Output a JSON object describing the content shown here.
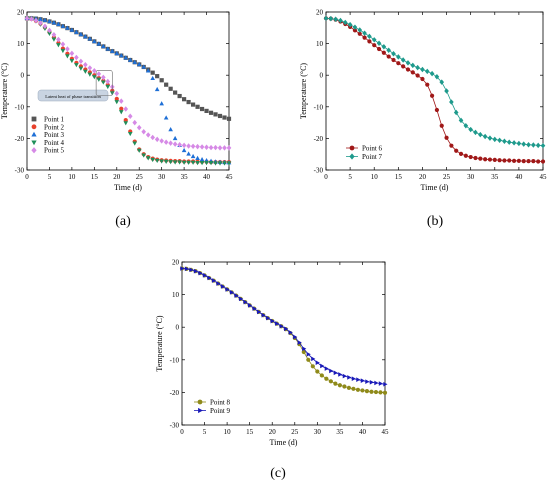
{
  "charts": [
    {
      "id": "a",
      "caption": "(a)",
      "chart_data": {
        "type": "scatter",
        "title": "",
        "xlabel": "Time (d)",
        "ylabel": "Temperature (°C)",
        "xlim": [
          0,
          45
        ],
        "ylim": [
          -30,
          20
        ],
        "xticks": [
          0,
          5,
          10,
          15,
          20,
          25,
          30,
          35,
          40,
          45
        ],
        "yticks": [
          -30,
          -20,
          -10,
          0,
          10,
          20
        ],
        "grid": false,
        "legend_position": "bottom-left",
        "annotation": "Latent heat of phase transition",
        "series": [
          {
            "name": "Point 1",
            "color": "#555555",
            "marker": "square",
            "x": [
              0,
              1,
              2,
              3,
              4,
              5,
              6,
              7,
              8,
              9,
              10,
              11,
              12,
              13,
              14,
              15,
              16,
              17,
              18,
              19,
              20,
              21,
              22,
              23,
              24,
              25,
              26,
              27,
              28,
              29,
              30,
              31,
              32,
              33,
              34,
              35,
              36,
              37,
              38,
              39,
              40,
              41,
              42,
              43,
              44,
              45
            ],
            "y": [
              18,
              18,
              17.9,
              17.7,
              17.4,
              17,
              16.6,
              16.1,
              15.5,
              14.9,
              14.3,
              13.6,
              12.9,
              12.2,
              11.5,
              10.7,
              9.9,
              9.1,
              8.3,
              7.6,
              6.9,
              6.2,
              5.5,
              4.8,
              4.1,
              3.4,
              2.6,
              1.8,
              0.8,
              -0.3,
              -1.6,
              -3,
              -4.3,
              -5.5,
              -6.6,
              -7.6,
              -8.5,
              -9.3,
              -10,
              -10.7,
              -11.3,
              -11.9,
              -12.4,
              -12.9,
              -13.4,
              -13.8
            ]
          },
          {
            "name": "Point 2",
            "color": "#e8412c",
            "marker": "circle",
            "x": [
              0,
              1,
              2,
              3,
              4,
              5,
              6,
              7,
              8,
              9,
              10,
              11,
              12,
              13,
              14,
              15,
              16,
              17,
              18,
              19,
              20,
              21,
              22,
              23,
              24,
              25,
              26,
              27,
              28,
              29,
              30,
              31,
              32,
              33,
              34,
              35,
              36,
              37,
              38,
              39,
              40,
              41,
              42,
              43,
              44,
              45
            ],
            "y": [
              18,
              17.8,
              17.2,
              16.3,
              15.1,
              13.6,
              11.9,
              10.2,
              8.4,
              6.8,
              5.2,
              3.9,
              2.8,
              1.8,
              0.9,
              0,
              -0.9,
              -1.8,
              -3.1,
              -4.9,
              -7.5,
              -10.6,
              -14.2,
              -17.8,
              -21,
              -23.5,
              -25,
              -25.9,
              -26.4,
              -26.7,
              -26.9,
              -27,
              -27.1,
              -27.2,
              -27.2,
              -27.3,
              -27.3,
              -27.3,
              -27.4,
              -27.4,
              -27.4,
              -27.5,
              -27.5,
              -27.5,
              -27.5,
              -27.5
            ]
          },
          {
            "name": "Point 3",
            "color": "#1e6fd6",
            "marker": "triangle-up",
            "x": [
              0,
              1,
              2,
              3,
              4,
              5,
              6,
              7,
              8,
              9,
              10,
              11,
              12,
              13,
              14,
              15,
              16,
              17,
              18,
              19,
              20,
              21,
              22,
              23,
              24,
              25,
              26,
              27,
              28,
              29,
              30,
              31,
              32,
              33,
              34,
              35,
              36,
              37,
              38,
              39,
              40,
              41,
              42,
              43,
              44,
              45
            ],
            "y": [
              18,
              18,
              17.9,
              17.7,
              17.4,
              17,
              16.6,
              16.1,
              15.5,
              14.9,
              14.3,
              13.6,
              12.9,
              12.2,
              11.5,
              10.7,
              9.9,
              9.1,
              8.3,
              7.6,
              6.9,
              6.2,
              5.5,
              4.8,
              4.1,
              3.4,
              2.6,
              1.4,
              -1,
              -4.5,
              -9,
              -13.5,
              -17.2,
              -20,
              -22.2,
              -23.8,
              -24.9,
              -25.7,
              -26.3,
              -26.7,
              -27,
              -27.2,
              -27.4,
              -27.5,
              -27.6,
              -27.7
            ]
          },
          {
            "name": "Point 4",
            "color": "#1f8f5a",
            "marker": "triangle-down",
            "x": [
              0,
              1,
              2,
              3,
              4,
              5,
              6,
              7,
              8,
              9,
              10,
              11,
              12,
              13,
              14,
              15,
              16,
              17,
              18,
              19,
              20,
              21,
              22,
              23,
              24,
              25,
              26,
              27,
              28,
              29,
              30,
              31,
              32,
              33,
              34,
              35,
              36,
              37,
              38,
              39,
              40,
              41,
              42,
              43,
              44,
              45
            ],
            "y": [
              18,
              17.8,
              17.1,
              16.1,
              14.8,
              13.2,
              11.4,
              9.6,
              7.8,
              6.1,
              4.6,
              3.3,
              2.2,
              1.2,
              0.3,
              -0.5,
              -1.3,
              -2.2,
              -3.6,
              -5.6,
              -8.4,
              -11.6,
              -15.1,
              -18.5,
              -21.5,
              -23.8,
              -25.3,
              -26.2,
              -26.7,
              -27,
              -27.2,
              -27.3,
              -27.4,
              -27.5,
              -27.5,
              -27.6,
              -27.6,
              -27.6,
              -27.7,
              -27.7,
              -27.7,
              -27.7,
              -27.8,
              -27.8,
              -27.8,
              -27.8
            ]
          },
          {
            "name": "Point 5",
            "color": "#d68ae6",
            "marker": "diamond",
            "x": [
              0,
              1,
              2,
              3,
              4,
              5,
              6,
              7,
              8,
              9,
              10,
              11,
              12,
              13,
              14,
              15,
              16,
              17,
              18,
              19,
              20,
              21,
              22,
              23,
              24,
              25,
              26,
              27,
              28,
              29,
              30,
              31,
              32,
              33,
              34,
              35,
              36,
              37,
              38,
              39,
              40,
              41,
              42,
              43,
              44,
              45
            ],
            "y": [
              18,
              17.8,
              17.3,
              16.5,
              15.5,
              14.2,
              12.8,
              11.3,
              9.8,
              8.3,
              6.9,
              5.6,
              4.4,
              3.3,
              2.3,
              1.4,
              0.4,
              -0.7,
              -2,
              -3.7,
              -5.8,
              -8.2,
              -10.7,
              -13,
              -15,
              -16.6,
              -17.9,
              -18.9,
              -19.7,
              -20.3,
              -20.8,
              -21.2,
              -21.5,
              -21.8,
              -22,
              -22.2,
              -22.4,
              -22.5,
              -22.6,
              -22.7,
              -22.8,
              -22.9,
              -22.9,
              -23,
              -23,
              -23
            ]
          }
        ]
      }
    },
    {
      "id": "b",
      "caption": "(b)",
      "chart_data": {
        "type": "line",
        "title": "",
        "xlabel": "Time (d)",
        "ylabel": "Temperature (°C)",
        "xlim": [
          0,
          45
        ],
        "ylim": [
          -30,
          20
        ],
        "xticks": [
          0,
          5,
          10,
          15,
          20,
          25,
          30,
          35,
          40,
          45
        ],
        "yticks": [
          -30,
          -20,
          -10,
          0,
          10,
          20
        ],
        "grid": false,
        "legend_position": "middle-left",
        "series": [
          {
            "name": "Point 6",
            "color": "#a01818",
            "marker": "circle",
            "x": [
              0,
              1,
              2,
              3,
              4,
              5,
              6,
              7,
              8,
              9,
              10,
              11,
              12,
              13,
              14,
              15,
              16,
              17,
              18,
              19,
              20,
              21,
              22,
              23,
              24,
              25,
              26,
              27,
              28,
              29,
              30,
              31,
              32,
              33,
              34,
              35,
              36,
              37,
              38,
              39,
              40,
              41,
              42,
              43,
              44,
              45
            ],
            "y": [
              18,
              17.9,
              17.6,
              17,
              16.2,
              15.3,
              14.2,
              13.1,
              11.9,
              10.7,
              9.5,
              8.3,
              7.1,
              5.9,
              4.8,
              3.8,
              2.8,
              1.8,
              0.9,
              -0.1,
              -1.2,
              -3,
              -6.5,
              -11,
              -16,
              -19.8,
              -22.3,
              -23.9,
              -24.9,
              -25.5,
              -25.9,
              -26.2,
              -26.4,
              -26.6,
              -26.7,
              -26.8,
              -26.9,
              -27,
              -27,
              -27.1,
              -27.1,
              -27.2,
              -27.2,
              -27.2,
              -27.3,
              -27.3
            ]
          },
          {
            "name": "Point 7",
            "color": "#1e9a8c",
            "marker": "diamond",
            "x": [
              0,
              1,
              2,
              3,
              4,
              5,
              6,
              7,
              8,
              9,
              10,
              11,
              12,
              13,
              14,
              15,
              16,
              17,
              18,
              19,
              20,
              21,
              22,
              23,
              24,
              25,
              26,
              27,
              28,
              29,
              30,
              31,
              32,
              33,
              34,
              35,
              36,
              37,
              38,
              39,
              40,
              41,
              42,
              43,
              44,
              45
            ],
            "y": [
              18,
              17.9,
              17.7,
              17.3,
              16.7,
              16,
              15.2,
              14.3,
              13.3,
              12.3,
              11.2,
              10.1,
              9,
              7.9,
              6.8,
              5.8,
              4.8,
              3.9,
              3.1,
              2.4,
              1.8,
              1.2,
              0.5,
              -0.5,
              -2.2,
              -5,
              -8.5,
              -11.8,
              -14.3,
              -16,
              -17.2,
              -18.1,
              -18.8,
              -19.4,
              -19.9,
              -20.3,
              -20.6,
              -20.9,
              -21.2,
              -21.4,
              -21.6,
              -21.8,
              -22,
              -22.1,
              -22.2,
              -22.3
            ]
          }
        ]
      }
    },
    {
      "id": "c",
      "caption": "(c)",
      "chart_data": {
        "type": "line",
        "title": "",
        "xlabel": "Time (d)",
        "ylabel": "Temperature (°C)",
        "xlim": [
          0,
          45
        ],
        "ylim": [
          -30,
          20
        ],
        "xticks": [
          0,
          5,
          10,
          15,
          20,
          25,
          30,
          35,
          40,
          45
        ],
        "yticks": [
          -30,
          -20,
          -10,
          0,
          10,
          20
        ],
        "grid": false,
        "legend_position": "bottom-left",
        "series": [
          {
            "name": "Point 8",
            "color": "#8f8a1a",
            "marker": "circle",
            "x": [
              0,
              1,
              2,
              3,
              4,
              5,
              6,
              7,
              8,
              9,
              10,
              11,
              12,
              13,
              14,
              15,
              16,
              17,
              18,
              19,
              20,
              21,
              22,
              23,
              24,
              25,
              26,
              27,
              28,
              29,
              30,
              31,
              32,
              33,
              34,
              35,
              36,
              37,
              38,
              39,
              40,
              41,
              42,
              43,
              44,
              45
            ],
            "y": [
              18,
              17.9,
              17.6,
              17.2,
              16.6,
              15.9,
              15.1,
              14.3,
              13.4,
              12.5,
              11.6,
              10.7,
              9.7,
              8.7,
              7.7,
              6.7,
              5.7,
              4.7,
              3.7,
              2.8,
              1.9,
              1.1,
              0.3,
              -0.6,
              -1.8,
              -3.3,
              -5.2,
              -7.6,
              -10,
              -12,
              -13.6,
              -14.8,
              -15.8,
              -16.6,
              -17.3,
              -17.8,
              -18.2,
              -18.6,
              -18.9,
              -19.2,
              -19.4,
              -19.6,
              -19.8,
              -19.9,
              -20,
              -20.1
            ]
          },
          {
            "name": "Point 9",
            "color": "#1a1ab8",
            "marker": "triangle-right",
            "x": [
              0,
              1,
              2,
              3,
              4,
              5,
              6,
              7,
              8,
              9,
              10,
              11,
              12,
              13,
              14,
              15,
              16,
              17,
              18,
              19,
              20,
              21,
              22,
              23,
              24,
              25,
              26,
              27,
              28,
              29,
              30,
              31,
              32,
              33,
              34,
              35,
              36,
              37,
              38,
              39,
              40,
              41,
              42,
              43,
              44,
              45
            ],
            "y": [
              18,
              17.9,
              17.6,
              17.2,
              16.6,
              15.9,
              15.1,
              14.3,
              13.4,
              12.5,
              11.6,
              10.7,
              9.7,
              8.7,
              7.7,
              6.7,
              5.7,
              4.7,
              3.7,
              2.8,
              1.9,
              1.1,
              0.3,
              -0.5,
              -1.6,
              -3,
              -4.7,
              -6.6,
              -8.3,
              -9.7,
              -10.9,
              -11.9,
              -12.7,
              -13.4,
              -14,
              -14.5,
              -15,
              -15.4,
              -15.8,
              -16.1,
              -16.4,
              -16.7,
              -16.9,
              -17.1,
              -17.3,
              -17.5
            ]
          }
        ]
      }
    }
  ]
}
